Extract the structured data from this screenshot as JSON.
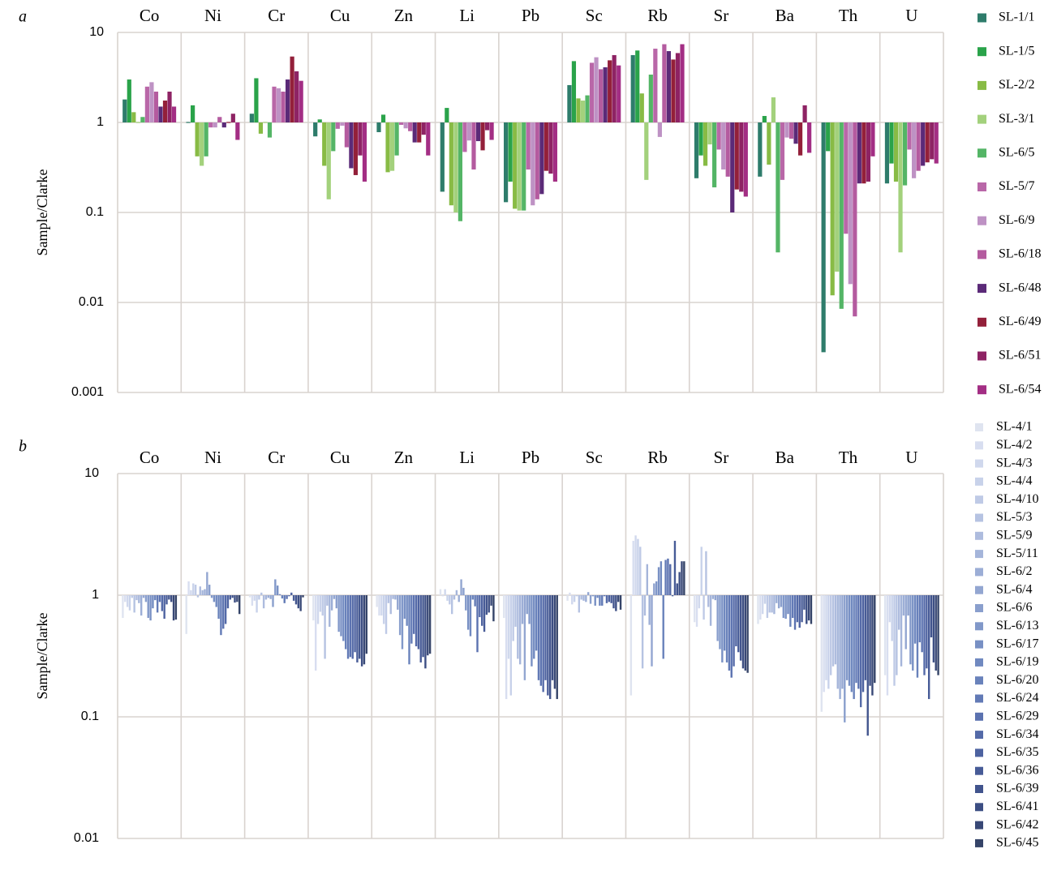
{
  "figure": {
    "panels": [
      "a",
      "b"
    ]
  },
  "chart_data": [
    {
      "type": "bar",
      "panel_letter": "a",
      "ylabel": "Sample/Clarke",
      "yscale": "log",
      "ylim": [
        0.001,
        10
      ],
      "yticks": [
        "10",
        "1",
        "0.1",
        "0.01",
        "0.001"
      ],
      "ytick_values": [
        10,
        1,
        0.1,
        0.01,
        0.001
      ],
      "categories": [
        "Co",
        "Ni",
        "Cr",
        "Cu",
        "Zn",
        "Li",
        "Pb",
        "Sc",
        "Rb",
        "Sr",
        "Ba",
        "Th",
        "U"
      ],
      "grid": true,
      "legend_position": "right",
      "series": [
        {
          "name": "SL-1/1",
          "color": "#2e7c6b",
          "values": [
            1.8,
            0.98,
            1.25,
            0.7,
            0.78,
            0.17,
            0.13,
            2.6,
            5.6,
            0.24,
            0.25,
            0.0028,
            0.21
          ]
        },
        {
          "name": "SL-1/5",
          "color": "#2aa34a",
          "values": [
            3.0,
            1.55,
            3.1,
            1.08,
            1.22,
            1.45,
            0.22,
            4.8,
            6.3,
            0.43,
            1.18,
            0.48,
            0.35
          ]
        },
        {
          "name": "SL-2/2",
          "color": "#88bb45",
          "values": [
            1.3,
            0.42,
            0.75,
            0.33,
            0.28,
            0.12,
            0.11,
            1.85,
            2.1,
            0.33,
            0.34,
            0.012,
            0.22
          ]
        },
        {
          "name": "SL-3/1",
          "color": "#a3d17c",
          "values": [
            0.98,
            0.33,
            0.98,
            0.14,
            0.29,
            0.1,
            0.105,
            1.75,
            0.23,
            0.57,
            1.9,
            0.022,
            0.036
          ]
        },
        {
          "name": "SL-6/5",
          "color": "#54b566",
          "values": [
            1.15,
            0.42,
            0.68,
            0.48,
            0.43,
            0.08,
            0.105,
            2.0,
            3.4,
            0.19,
            0.036,
            0.0085,
            0.2
          ]
        },
        {
          "name": "SL-5/7",
          "color": "#b967a8",
          "values": [
            2.5,
            0.88,
            2.5,
            0.85,
            0.94,
            0.47,
            0.3,
            4.6,
            6.6,
            0.5,
            0.23,
            0.058,
            0.5
          ]
        },
        {
          "name": "SL-6/9",
          "color": "#be92c4",
          "values": [
            2.8,
            0.88,
            2.4,
            0.92,
            0.86,
            0.63,
            0.12,
            5.3,
            0.69,
            0.3,
            0.68,
            0.016,
            0.24
          ]
        },
        {
          "name": "SL-6/18",
          "color": "#b45b9f",
          "values": [
            2.2,
            1.15,
            2.2,
            0.53,
            0.8,
            0.3,
            0.14,
            3.9,
            7.4,
            0.25,
            0.66,
            0.007,
            0.29
          ]
        },
        {
          "name": "SL-6/48",
          "color": "#5b2a78",
          "values": [
            1.5,
            0.88,
            3.0,
            0.31,
            0.6,
            0.62,
            0.16,
            4.1,
            6.2,
            0.1,
            0.58,
            0.21,
            0.33
          ]
        },
        {
          "name": "SL-6/49",
          "color": "#93203a",
          "values": [
            1.75,
            0.98,
            5.4,
            0.26,
            0.6,
            0.49,
            0.29,
            4.9,
            5.0,
            0.18,
            0.43,
            0.21,
            0.36
          ]
        },
        {
          "name": "SL-6/51",
          "color": "#8e2364",
          "values": [
            2.2,
            1.25,
            3.7,
            0.43,
            0.73,
            0.82,
            0.27,
            5.6,
            5.9,
            0.17,
            1.55,
            0.22,
            0.39
          ]
        },
        {
          "name": "SL-6/54",
          "color": "#a32e84",
          "values": [
            1.5,
            0.64,
            2.9,
            0.22,
            0.43,
            0.64,
            0.22,
            4.3,
            7.4,
            0.15,
            0.46,
            0.42,
            0.35
          ]
        }
      ]
    },
    {
      "type": "bar",
      "panel_letter": "b",
      "ylabel": "Sample/Clarke",
      "yscale": "log",
      "ylim": [
        0.01,
        10
      ],
      "yticks": [
        "10",
        "1",
        "0.1",
        "0.01"
      ],
      "ytick_values": [
        10,
        1,
        0.1,
        0.01
      ],
      "categories": [
        "Co",
        "Ni",
        "Cr",
        "Cu",
        "Zn",
        "Li",
        "Pb",
        "Sc",
        "Rb",
        "Sr",
        "Ba",
        "Th",
        "U"
      ],
      "grid": true,
      "legend_position": "right",
      "series": [
        {
          "name": "SL-4/1",
          "color": "#dfe4f0",
          "values": [
            0.65,
            0.48,
            0.96,
            0.62,
            0.8,
            1.12,
            0.65,
            0.9,
            0.15,
            0.6,
            0.58,
            0.11,
            0.22
          ]
        },
        {
          "name": "SL-4/2",
          "color": "#d8def0",
          "values": [
            0.88,
            1.3,
            0.82,
            0.24,
            0.68,
            0.98,
            0.14,
            1.05,
            2.8,
            0.55,
            0.63,
            0.16,
            0.15
          ]
        },
        {
          "name": "SL-4/3",
          "color": "#d0d8ed",
          "values": [
            0.8,
            1.1,
            0.9,
            0.58,
            0.68,
            1.12,
            0.3,
            0.84,
            3.1,
            0.78,
            0.7,
            0.2,
            0.6
          ]
        },
        {
          "name": "SL-4/4",
          "color": "#c8d2ea",
          "values": [
            0.75,
            1.25,
            0.72,
            0.73,
            0.58,
            0.9,
            0.15,
            0.88,
            2.9,
            2.5,
            0.85,
            0.17,
            0.42
          ]
        },
        {
          "name": "SL-4/10",
          "color": "#bfcae6",
          "values": [
            0.95,
            1.22,
            0.92,
            0.68,
            0.48,
            0.84,
            0.42,
            0.98,
            2.5,
            0.63,
            0.65,
            0.22,
            0.18
          ]
        },
        {
          "name": "SL-5/3",
          "color": "#b6c3e2",
          "values": [
            0.72,
            0.96,
            1.05,
            0.3,
            0.86,
            0.7,
            0.55,
            0.72,
            0.25,
            2.3,
            0.72,
            0.26,
            0.22
          ]
        },
        {
          "name": "SL-5/9",
          "color": "#aebcde",
          "values": [
            0.91,
            1.18,
            0.78,
            0.82,
            0.7,
            0.92,
            0.3,
            0.92,
            0.68,
            0.8,
            0.72,
            0.27,
            0.52
          ]
        },
        {
          "name": "SL-5/11",
          "color": "#a5b5da",
          "values": [
            0.86,
            1.1,
            0.92,
            0.55,
            0.93,
            1.1,
            0.27,
            0.9,
            1.8,
            0.56,
            0.7,
            0.17,
            0.26
          ]
        },
        {
          "name": "SL-6/2",
          "color": "#9caed6",
          "values": [
            0.68,
            1.12,
            0.95,
            0.75,
            0.92,
            0.88,
            0.58,
            0.88,
            0.57,
            0.93,
            0.86,
            0.14,
            0.68
          ]
        },
        {
          "name": "SL-6/4",
          "color": "#93a6d1",
          "values": [
            0.95,
            1.55,
            0.93,
            0.93,
            0.76,
            1.35,
            0.2,
            1.06,
            0.26,
            0.91,
            0.78,
            0.17,
            0.36
          ]
        },
        {
          "name": "SL-6/6",
          "color": "#8a9fcd",
          "values": [
            0.88,
            1.22,
            0.8,
            0.78,
            0.47,
            1.15,
            0.7,
            0.85,
            1.25,
            0.42,
            0.8,
            0.09,
            0.68
          ]
        },
        {
          "name": "SL-6/13",
          "color": "#8198c9",
          "values": [
            0.65,
            0.95,
            1.35,
            0.5,
            0.36,
            0.75,
            0.58,
            0.98,
            1.3,
            0.36,
            0.65,
            0.2,
            0.27
          ]
        },
        {
          "name": "SL-6/17",
          "color": "#7890c4",
          "values": [
            0.62,
            0.88,
            1.2,
            0.46,
            0.64,
            0.52,
            0.26,
            0.82,
            1.7,
            0.28,
            0.64,
            0.18,
            0.24
          ]
        },
        {
          "name": "SL-6/19",
          "color": "#7089c0",
          "values": [
            0.78,
            0.8,
            1.02,
            0.42,
            0.56,
            0.46,
            0.3,
            0.95,
            1.9,
            0.35,
            0.7,
            0.16,
            0.4
          ]
        },
        {
          "name": "SL-6/20",
          "color": "#6982bb",
          "values": [
            0.91,
            0.64,
            0.94,
            0.36,
            0.27,
            0.92,
            0.35,
            0.82,
            0.3,
            0.28,
            0.55,
            0.14,
            0.21
          ]
        },
        {
          "name": "SL-6/24",
          "color": "#627ab6",
          "values": [
            0.72,
            0.47,
            0.86,
            0.3,
            0.4,
            0.81,
            0.2,
            0.82,
            1.95,
            0.24,
            0.65,
            0.19,
            0.41
          ]
        },
        {
          "name": "SL-6/29",
          "color": "#5b72b0",
          "values": [
            0.88,
            0.53,
            0.93,
            0.31,
            0.48,
            0.34,
            0.18,
            0.98,
            2.0,
            0.21,
            0.52,
            0.17,
            0.34
          ]
        },
        {
          "name": "SL-6/34",
          "color": "#546aa8",
          "values": [
            0.74,
            0.58,
            0.98,
            0.3,
            0.38,
            0.66,
            0.16,
            0.86,
            1.8,
            0.26,
            0.6,
            0.12,
            0.22
          ]
        },
        {
          "name": "SL-6/35",
          "color": "#4d62a0",
          "values": [
            0.64,
            0.78,
            1.05,
            0.34,
            0.36,
            0.56,
            0.2,
            0.88,
            0.98,
            0.38,
            0.54,
            0.16,
            0.25
          ]
        },
        {
          "name": "SL-6/36",
          "color": "#475b97",
          "values": [
            0.84,
            0.92,
            0.9,
            0.28,
            0.28,
            0.5,
            0.15,
            0.86,
            2.8,
            0.34,
            0.6,
            0.2,
            0.14
          ]
        },
        {
          "name": "SL-6/39",
          "color": "#41548d",
          "values": [
            0.92,
            0.95,
            0.84,
            0.3,
            0.31,
            0.69,
            0.14,
            0.78,
            1.25,
            0.29,
            0.76,
            0.07,
            0.45
          ]
        },
        {
          "name": "SL-6/41",
          "color": "#3c4e83",
          "values": [
            0.88,
            0.87,
            0.78,
            0.26,
            0.25,
            0.72,
            0.2,
            0.74,
            1.55,
            0.25,
            0.58,
            0.18,
            0.28
          ]
        },
        {
          "name": "SL-6/42",
          "color": "#384876",
          "values": [
            0.62,
            0.88,
            0.74,
            0.27,
            0.32,
            0.82,
            0.17,
            0.88,
            1.9,
            0.24,
            0.62,
            0.15,
            0.24
          ]
        },
        {
          "name": "SL-6/45",
          "color": "#354468",
          "values": [
            0.63,
            0.7,
            0.96,
            0.33,
            0.33,
            0.61,
            0.14,
            0.76,
            1.9,
            0.23,
            0.58,
            0.19,
            0.22
          ]
        }
      ]
    }
  ]
}
